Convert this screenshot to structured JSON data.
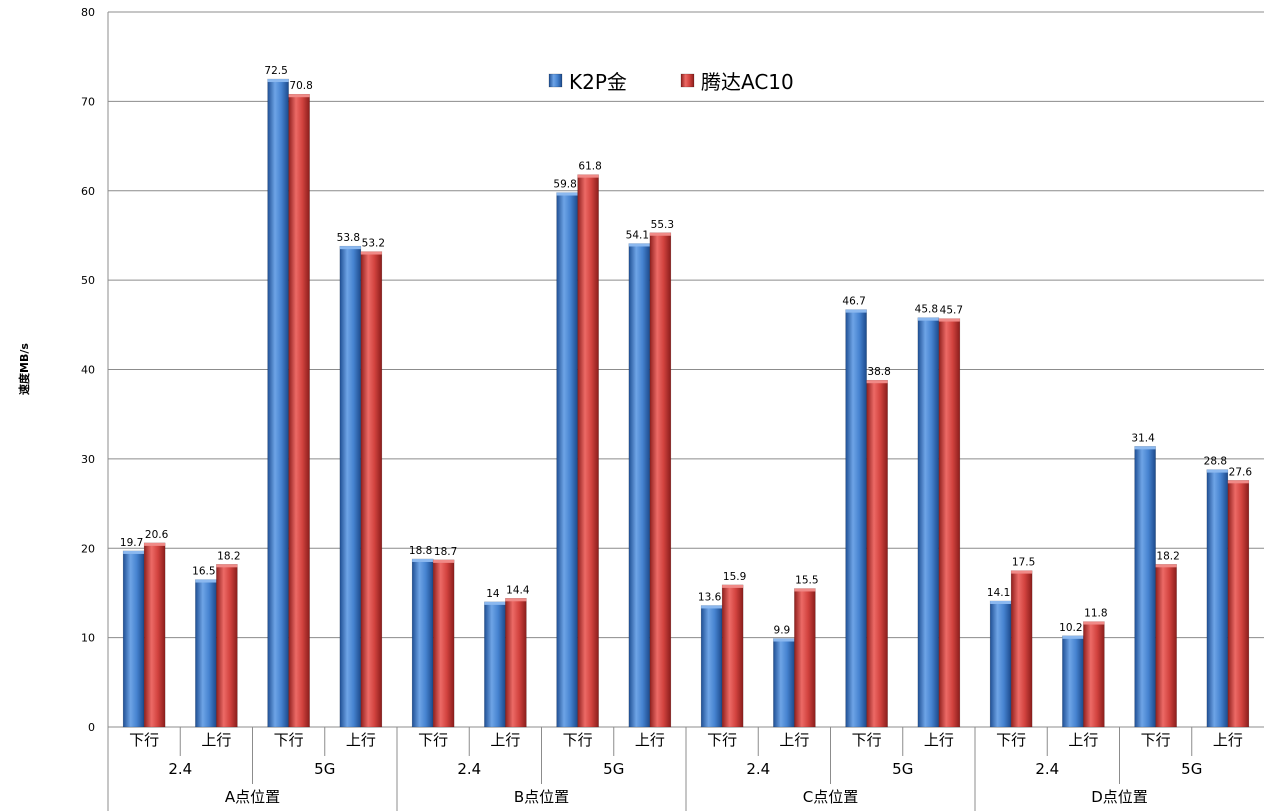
{
  "chart_data": {
    "type": "bar",
    "ylabel": "速度MB/s",
    "ylim": [
      0,
      80
    ],
    "yticks": [
      0,
      10,
      20,
      30,
      40,
      50,
      60,
      70,
      80
    ],
    "grid": true,
    "legend_position": "top-center",
    "groups": [
      {
        "label": "A点位置",
        "bands": [
          {
            "label": "2.4",
            "categories": [
              "下行",
              "上行"
            ]
          },
          {
            "label": "5G",
            "categories": [
              "下行",
              "上行"
            ]
          }
        ]
      },
      {
        "label": "B点位置",
        "bands": [
          {
            "label": "2.4",
            "categories": [
              "下行",
              "上行"
            ]
          },
          {
            "label": "5G",
            "categories": [
              "下行",
              "上行"
            ]
          }
        ]
      },
      {
        "label": "C点位置",
        "bands": [
          {
            "label": "2.4",
            "categories": [
              "下行",
              "上行"
            ]
          },
          {
            "label": "5G",
            "categories": [
              "下行",
              "上行"
            ]
          }
        ]
      },
      {
        "label": "D点位置",
        "bands": [
          {
            "label": "2.4",
            "categories": [
              "下行",
              "上行"
            ]
          },
          {
            "label": "5G",
            "categories": [
              "下行",
              "上行"
            ]
          }
        ]
      }
    ],
    "series": [
      {
        "name": "K2P金",
        "color": "#3b78c9",
        "values": [
          19.7,
          16.5,
          72.5,
          53.8,
          18.8,
          14,
          59.8,
          54.1,
          13.6,
          9.9,
          46.7,
          45.8,
          14.1,
          10.2,
          31.4,
          28.8
        ]
      },
      {
        "name": "腾达AC10",
        "color": "#cc3b38",
        "values": [
          20.6,
          18.2,
          70.8,
          53.2,
          18.7,
          14.4,
          61.8,
          55.3,
          15.9,
          15.5,
          38.8,
          45.7,
          17.5,
          11.8,
          18.2,
          27.6
        ]
      }
    ]
  }
}
